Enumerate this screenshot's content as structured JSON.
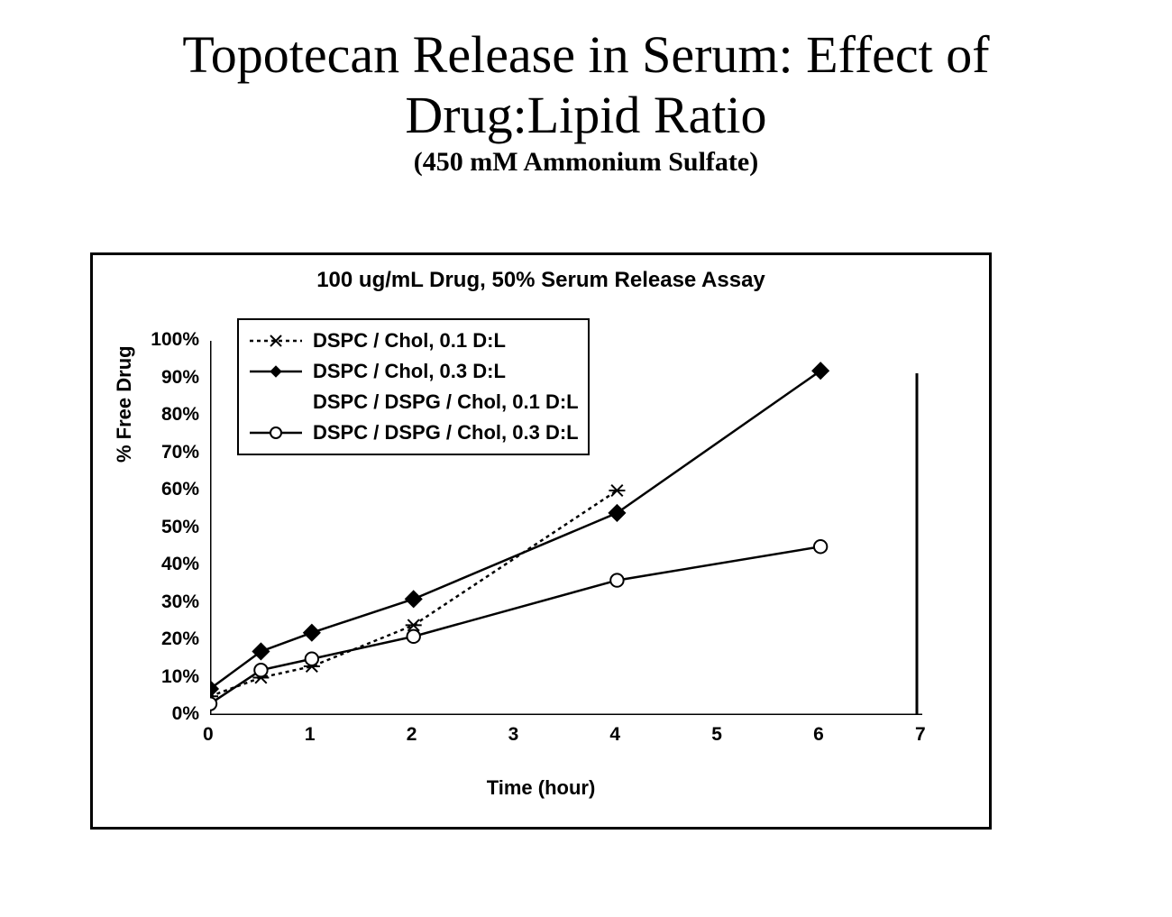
{
  "title_line1": "Topotecan Release in Serum:  Effect of",
  "title_line2": "Drug:Lipid Ratio",
  "subtitle": "(450 mM Ammonium Sulfate)",
  "chart": {
    "type": "line",
    "chart_title": "100 ug/mL Drug, 50% Serum Release Assay",
    "x_label": "Time (hour)",
    "y_label": "% Free Drug",
    "xlim": [
      0,
      7
    ],
    "ylim": [
      0,
      100
    ],
    "xtick_values": [
      0,
      1,
      2,
      3,
      4,
      5,
      6,
      7
    ],
    "xtick_labels": [
      "0",
      "1",
      "2",
      "3",
      "4",
      "5",
      "6",
      "7"
    ],
    "ytick_values": [
      0,
      10,
      20,
      30,
      40,
      50,
      60,
      70,
      80,
      90,
      100
    ],
    "ytick_labels": [
      "0%",
      "10%",
      "20%",
      "30%",
      "40%",
      "50%",
      "60%",
      "70%",
      "80%",
      "90%",
      "100%"
    ],
    "background_color": "#ffffff",
    "axis_color": "#000000",
    "title_fontsize": 24,
    "label_fontsize": 22,
    "tick_fontsize": 21,
    "line_width": 2.5,
    "marker_size": 9,
    "series": [
      {
        "name": "DSPC / Chol, 0.1 D:L",
        "marker": "x-dash",
        "color": "#000000",
        "dash": "4,4",
        "fill": "none",
        "x": [
          0,
          0.5,
          1,
          2,
          4
        ],
        "y": [
          5,
          10,
          13,
          24,
          60
        ]
      },
      {
        "name": "DSPC / Chol, 0.3 D:L",
        "marker": "diamond-filled",
        "color": "#000000",
        "dash": "none",
        "fill": "#000000",
        "x": [
          0,
          0.5,
          1,
          2,
          4,
          6
        ],
        "y": [
          7,
          17,
          22,
          31,
          54,
          92
        ]
      },
      {
        "name": "DSPC / DSPG / Chol, 0.1 D:L",
        "marker": "none",
        "color": "#000000",
        "dash": "none",
        "fill": "none",
        "x": [],
        "y": []
      },
      {
        "name": "DSPC / DSPG / Chol, 0.3 D:L",
        "marker": "circle-open",
        "color": "#000000",
        "dash": "none",
        "fill": "#ffffff",
        "x": [
          0,
          0.5,
          1,
          2,
          4,
          6
        ],
        "y": [
          3,
          12,
          15,
          21,
          36,
          45
        ]
      }
    ],
    "legend": {
      "items": [
        "DSPC / Chol, 0.1 D:L",
        "DSPC / Chol, 0.3 D:L",
        "DSPC / DSPG / Chol, 0.1 D:L",
        "DSPC / DSPG / Chol, 0.3 D:L"
      ]
    }
  }
}
